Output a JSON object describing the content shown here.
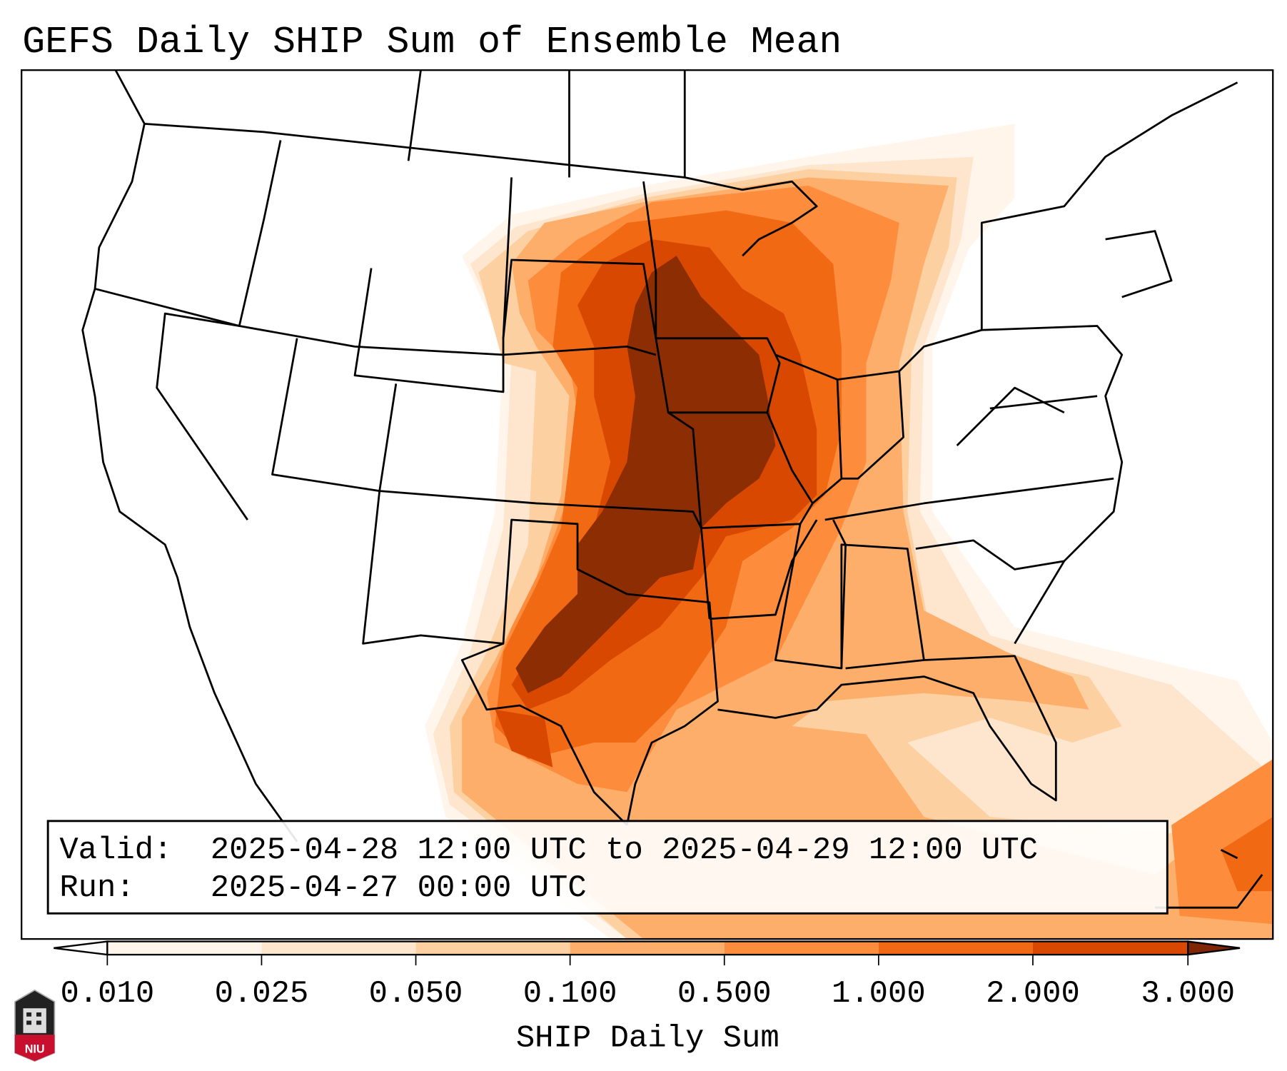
{
  "title": "GEFS Daily SHIP Sum of Ensemble Mean",
  "info_box": {
    "valid_label": "Valid:",
    "valid_value": "2025-04-28 12:00 UTC to 2025-04-29 12:00 UTC",
    "run_label": "Run:",
    "run_value": "2025-04-27 00:00 UTC"
  },
  "colorbar": {
    "label": "SHIP Daily Sum",
    "ticks": [
      "0.010",
      "0.025",
      "0.050",
      "0.100",
      "0.500",
      "1.000",
      "2.000",
      "3.000"
    ],
    "colors": [
      "#fff5eb",
      "#fee6ce",
      "#fdd0a2",
      "#fdae6b",
      "#fd8d3c",
      "#f16913",
      "#d94801",
      "#8c2d04"
    ],
    "under_color": "#ffffff",
    "over_color": "#7f2704"
  },
  "logo": {
    "text": "NIU",
    "color": "#c8102e"
  }
}
